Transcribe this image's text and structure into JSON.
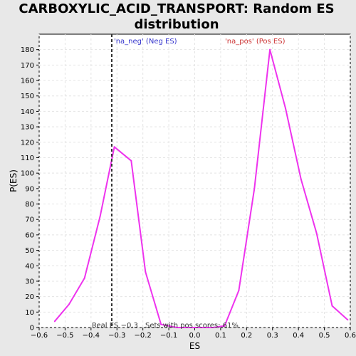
{
  "chart_data": {
    "type": "line",
    "title_lines": [
      "CARBOXYLIC_ACID_TRANSPORT: Random ES",
      "distribution"
    ],
    "xlabel": "ES",
    "ylabel": "P(ES)",
    "xlim": [
      -0.6,
      0.6
    ],
    "ylim": [
      0,
      190
    ],
    "xticks": [
      -0.6,
      -0.5,
      -0.4,
      -0.3,
      -0.2,
      -0.1,
      0.0,
      0.1,
      0.2,
      0.3,
      0.4,
      0.5,
      0.6
    ],
    "xtick_labels": [
      "−0.6",
      "−0.5",
      "−0.4",
      "−0.3",
      "−0.2",
      "−0.1",
      "0.0",
      "0.1",
      "0.2",
      "0.3",
      "0.4",
      "0.5",
      "0.6"
    ],
    "yticks": [
      0,
      10,
      20,
      30,
      40,
      50,
      60,
      70,
      80,
      90,
      100,
      110,
      120,
      130,
      140,
      150,
      160,
      170,
      180
    ],
    "ytick_labels": [
      "0",
      "10",
      "20",
      "30",
      "40",
      "50",
      "60",
      "70",
      "80",
      "90",
      "100",
      "110",
      "120",
      "130",
      "140",
      "150",
      "160",
      "170",
      "180"
    ],
    "grid": true,
    "series": [
      {
        "color": "#ee33ee",
        "x": [
          -0.54,
          -0.485,
          -0.425,
          -0.365,
          -0.31,
          -0.245,
          -0.19,
          -0.13,
          -0.07,
          0.0,
          0.07,
          0.115,
          0.17,
          0.23,
          0.29,
          0.35,
          0.41,
          0.47,
          0.53,
          0.59
        ],
        "y": [
          4,
          15,
          32,
          72,
          117,
          108,
          36,
          2,
          0,
          0,
          0,
          1,
          24,
          90,
          180,
          142,
          96,
          61,
          14,
          5
        ]
      }
    ],
    "real_es": {
      "value": -0.32,
      "color": "#333333",
      "label": "Real ES −0.3"
    },
    "annotations": {
      "neg_label": "'na_neg' (Neg ES)",
      "neg_color": "#3333cc",
      "pos_label": "'na_pos' (Pos ES)",
      "pos_color": "#cc3333",
      "sets_label": "Sets with pos scores: 61%",
      "sets_color": "#333333"
    },
    "colors": {
      "page_background": "#e8e8e8",
      "plot_background": "#ffffff",
      "grid": "#e4e4e4",
      "axis": "#000000"
    }
  }
}
